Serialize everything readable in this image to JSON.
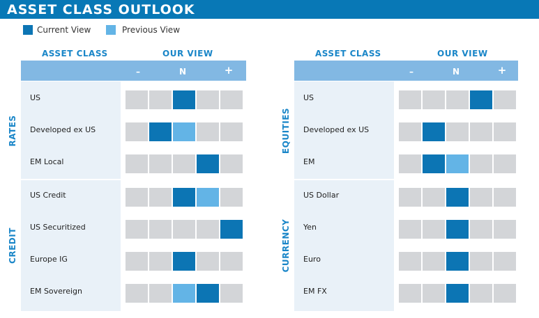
{
  "title": "ASSET CLASS OUTLOOK",
  "legend": {
    "current": "Current View",
    "previous": "Previous View"
  },
  "colors": {
    "current": "#0c75b4",
    "previous": "#63b4e6",
    "empty": "#d3d5d8",
    "accent": "#0878b6"
  },
  "headers": {
    "asset_class": "ASSET CLASS",
    "our_view": "OUR VIEW",
    "minus": "–",
    "neutral": "N",
    "plus": "+"
  },
  "chart_data": {
    "type": "table",
    "title": "ASSET CLASS OUTLOOK",
    "scale": [
      "–",
      "",
      "N",
      "",
      "+"
    ],
    "panels": [
      {
        "groups": [
          {
            "name": "RATES",
            "rows": [
              {
                "label": "US",
                "current": 3,
                "previous": null
              },
              {
                "label": "Developed ex US",
                "current": 2,
                "previous": 3
              },
              {
                "label": "EM Local",
                "current": 4,
                "previous": null
              }
            ]
          },
          {
            "name": "CREDIT",
            "rows": [
              {
                "label": "US Credit",
                "current": 3,
                "previous": 4
              },
              {
                "label": "US Securitized",
                "current": 5,
                "previous": null
              },
              {
                "label": "Europe IG",
                "current": 3,
                "previous": null
              },
              {
                "label": "EM Sovereign",
                "current": 4,
                "previous": 3
              }
            ]
          }
        ]
      },
      {
        "groups": [
          {
            "name": "EQUITIES",
            "rows": [
              {
                "label": "US",
                "current": 4,
                "previous": null
              },
              {
                "label": "Developed ex US",
                "current": 2,
                "previous": null
              },
              {
                "label": "EM",
                "current": 2,
                "previous": 3
              }
            ]
          },
          {
            "name": "CURRENCY",
            "rows": [
              {
                "label": "US Dollar",
                "current": 3,
                "previous": null
              },
              {
                "label": "Yen",
                "current": 3,
                "previous": null
              },
              {
                "label": "Euro",
                "current": 3,
                "previous": null
              },
              {
                "label": "EM FX",
                "current": 3,
                "previous": null
              }
            ]
          }
        ]
      }
    ]
  }
}
